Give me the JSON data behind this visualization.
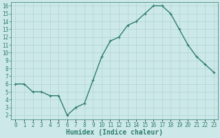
{
  "x": [
    0,
    1,
    2,
    3,
    4,
    5,
    6,
    7,
    8,
    9,
    10,
    11,
    12,
    13,
    14,
    15,
    16,
    17,
    18,
    19,
    20,
    21,
    22,
    23
  ],
  "y": [
    6.0,
    6.0,
    5.0,
    5.0,
    4.5,
    4.5,
    2.0,
    3.0,
    3.5,
    6.5,
    9.5,
    11.5,
    12.0,
    13.5,
    14.0,
    15.0,
    16.0,
    16.0,
    15.0,
    13.0,
    11.0,
    9.5,
    8.5,
    7.5
  ],
  "xlabel": "Humidex (Indice chaleur)",
  "xlim": [
    -0.5,
    23.5
  ],
  "ylim": [
    1.5,
    16.5
  ],
  "yticks": [
    2,
    3,
    4,
    5,
    6,
    7,
    8,
    9,
    10,
    11,
    12,
    13,
    14,
    15,
    16
  ],
  "xtick_labels": [
    "0",
    "1",
    "2",
    "3",
    "4",
    "5",
    "6",
    "7",
    "8",
    "9",
    "10",
    "11",
    "12",
    "13",
    "14",
    "15",
    "16",
    "17",
    "18",
    "19",
    "20",
    "21",
    "22",
    "23"
  ],
  "line_color": "#2d7d6e",
  "marker": "+",
  "marker_color": "#2d7d6e",
  "bg_color": "#cce8e8",
  "grid_color": "#b0d4d4",
  "axes_color": "#2d7d6e",
  "label_color": "#2d7d6e",
  "tick_label_color": "#2d7d6e",
  "tick_font_size": 5.5,
  "xlabel_font_size": 7,
  "linewidth": 1.0,
  "markersize": 3
}
